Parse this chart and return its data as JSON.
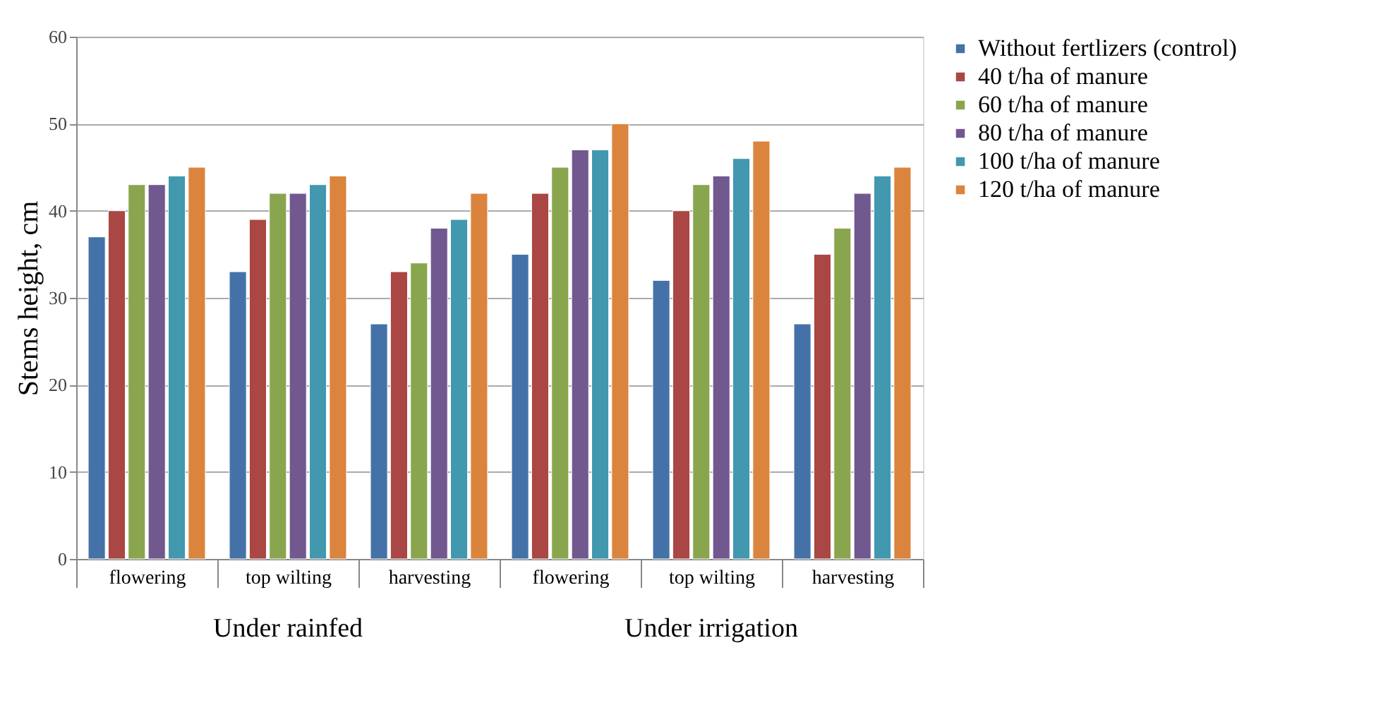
{
  "chart_data": {
    "type": "bar",
    "ylabel": "Stems height, cm",
    "categories": [
      "flowering",
      "top wilting",
      "harvesting",
      "flowering",
      "top wilting",
      "harvesting"
    ],
    "annotations": [
      "Under rainfed",
      "Under irrigation"
    ],
    "series": [
      {
        "name": "Without fertlizers (control)",
        "color": "#4472a8",
        "values": [
          37,
          33,
          27,
          35,
          32,
          27
        ]
      },
      {
        "name": "40 t/ha of manure",
        "color": "#aa4643",
        "values": [
          40,
          39,
          33,
          42,
          40,
          35
        ]
      },
      {
        "name": "60 t/ha of manure",
        "color": "#89a54e",
        "values": [
          43,
          42,
          34,
          45,
          43,
          38
        ]
      },
      {
        "name": "80 t/ha of manure",
        "color": "#71588f",
        "values": [
          43,
          42,
          38,
          47,
          44,
          42
        ]
      },
      {
        "name": "100 t/ha of manure",
        "color": "#4198af",
        "values": [
          44,
          43,
          39,
          47,
          46,
          44
        ]
      },
      {
        "name": "120 t/ha of manure",
        "color": "#db843d",
        "values": [
          45,
          44,
          42,
          50,
          48,
          45
        ]
      }
    ],
    "ylim": [
      0,
      60
    ],
    "yticks": [
      0,
      10,
      20,
      30,
      40,
      50,
      60
    ],
    "grid": "y",
    "legend": "right"
  }
}
